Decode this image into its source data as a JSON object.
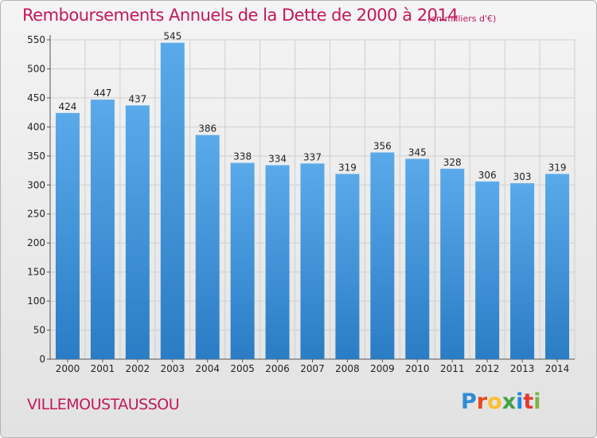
{
  "header": {
    "title": "Remboursements Annuels de la Dette de 2000 à 2014",
    "unit": "(en milliers d'€)"
  },
  "footer": {
    "commune": "VILLEMOUSTAUSSOU",
    "brand_letters": [
      "P",
      "r",
      "o",
      "x",
      "i",
      "t",
      "i"
    ],
    "brand_colors": [
      "#2e8bd6",
      "#e64a19",
      "#fbc02d",
      "#43a047",
      "#1e88e5",
      "#e53935",
      "#7cb342"
    ]
  },
  "colors": {
    "bar_top": "#5aaaea",
    "bar_bottom": "#2a7cc4",
    "grid": "#cfcfcf",
    "axis_text": "#222222",
    "title": "#c2185b"
  },
  "chart_data": {
    "type": "bar",
    "title": "Remboursements Annuels de la Dette de 2000 à 2014",
    "subtitle": "(en milliers d'€)",
    "categories": [
      "2000",
      "2001",
      "2002",
      "2003",
      "2004",
      "2005",
      "2006",
      "2007",
      "2008",
      "2009",
      "2010",
      "2011",
      "2012",
      "2013",
      "2014"
    ],
    "values": [
      424,
      447,
      437,
      545,
      386,
      338,
      334,
      337,
      319,
      356,
      345,
      328,
      306,
      303,
      319
    ],
    "ylim": [
      0,
      550
    ],
    "yticks": [
      0,
      50,
      100,
      150,
      200,
      250,
      300,
      350,
      400,
      450,
      500,
      550
    ],
    "grid": true,
    "data_labels": true
  }
}
